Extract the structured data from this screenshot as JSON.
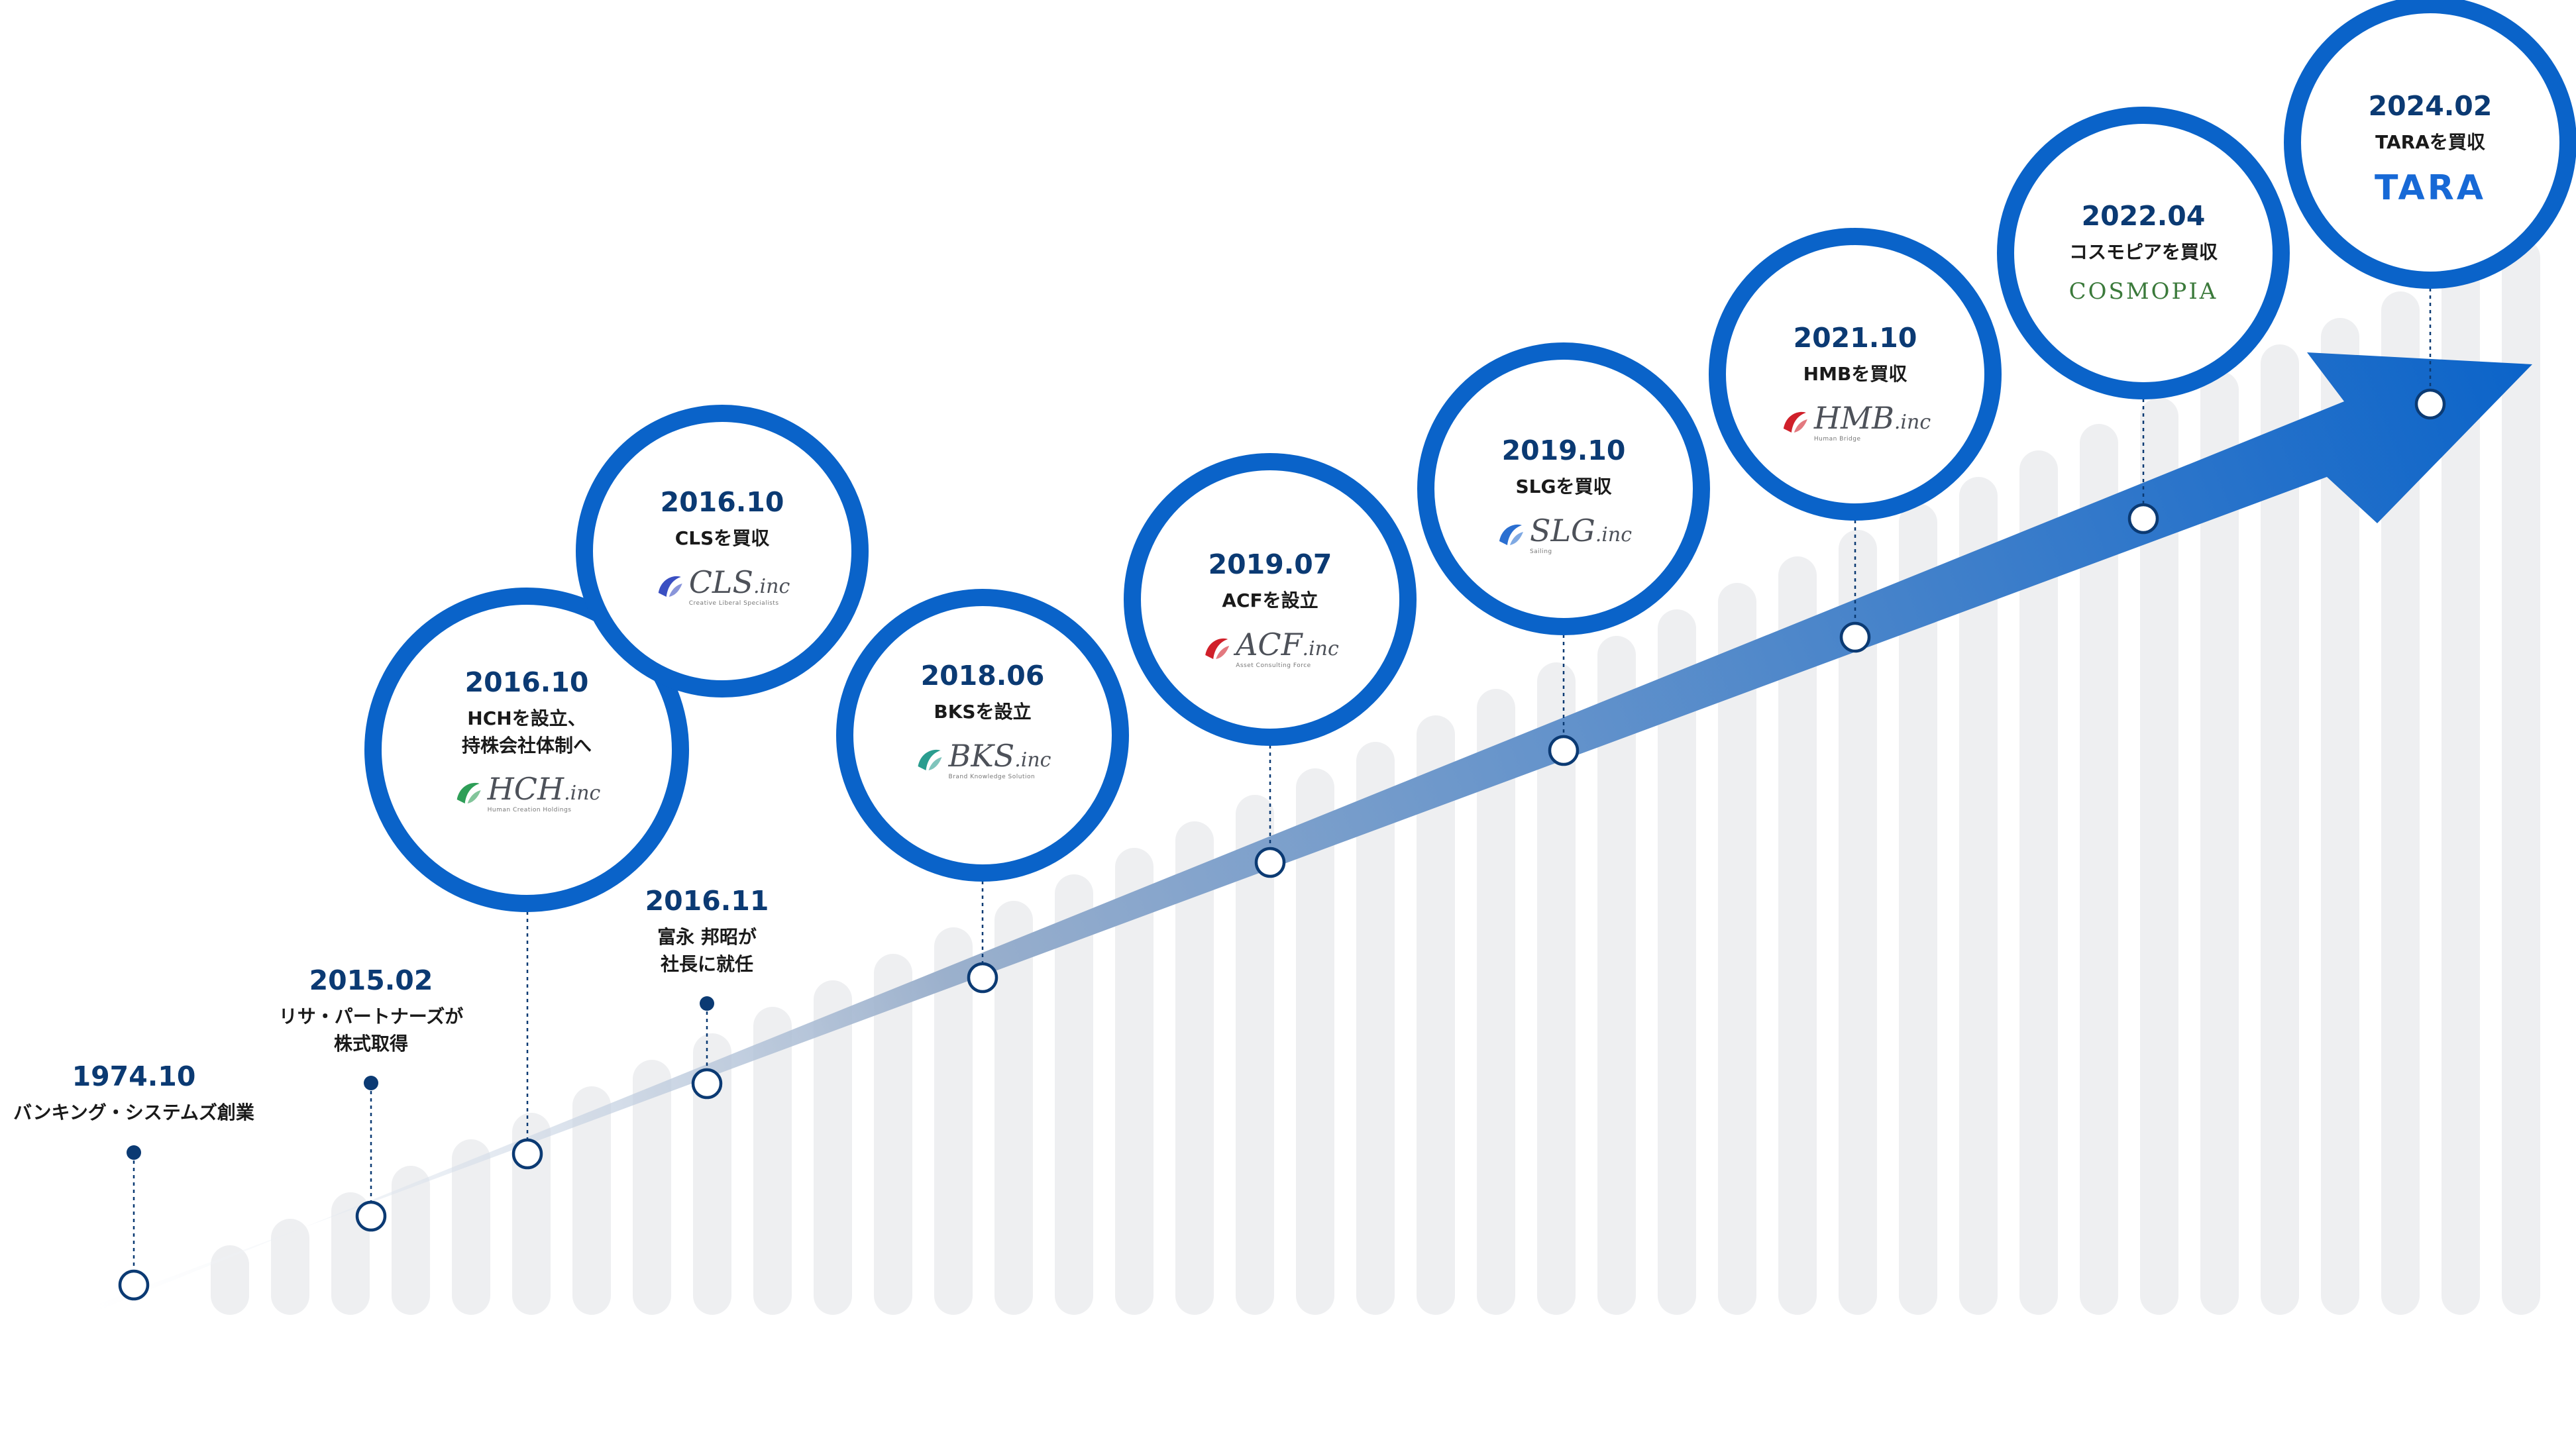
{
  "milestones": [
    {
      "date": "1974.10",
      "desc": [
        "バンキング・システムズ創業"
      ],
      "logo": null
    },
    {
      "date": "2015.02",
      "desc": [
        "リサ・パートナーズが",
        "株式取得"
      ],
      "logo": null
    },
    {
      "date": "2016.10",
      "desc": [
        "HCHを設立、",
        "持株会社体制へ"
      ],
      "logo": {
        "icon": "hch-logo-icon",
        "main": "HCH",
        "suffix": ".inc",
        "sub": "Human Creation Holdings",
        "color": "#2e9e57"
      }
    },
    {
      "date": "2016.11",
      "desc": [
        "富永 邦昭が",
        "社長に就任"
      ],
      "logo": null
    },
    {
      "date": "2016.10",
      "desc": [
        "CLSを買収"
      ],
      "logo": {
        "icon": "cls-logo-icon",
        "main": "CLS",
        "suffix": ".inc",
        "sub": "Creative Liberal Specialists",
        "color": "#3a4fc2"
      }
    },
    {
      "date": "2018.06",
      "desc": [
        "BKSを設立"
      ],
      "logo": {
        "icon": "bks-logo-icon",
        "main": "BKS",
        "suffix": ".inc",
        "sub": "Brand Knowledge Solution",
        "color": "#2a9d8f"
      }
    },
    {
      "date": "2019.07",
      "desc": [
        "ACFを設立"
      ],
      "logo": {
        "icon": "acf-logo-icon",
        "main": "ACF",
        "suffix": ".inc",
        "sub": "Asset Consulting Force",
        "color": "#d0202a"
      }
    },
    {
      "date": "2019.10",
      "desc": [
        "SLGを買収"
      ],
      "logo": {
        "icon": "slg-logo-icon",
        "main": "SLG",
        "suffix": ".inc",
        "sub": "Sailing",
        "color": "#2a6fd1"
      }
    },
    {
      "date": "2021.10",
      "desc": [
        "HMBを買収"
      ],
      "logo": {
        "icon": "hmb-logo-icon",
        "main": "HMB",
        "suffix": ".inc",
        "sub": "Human Bridge",
        "color": "#d0202a"
      }
    },
    {
      "date": "2022.04",
      "desc": [
        "コスモピアを買収"
      ],
      "logo": {
        "icon": null,
        "main": "COSMOPIA",
        "suffix": "",
        "sub": "",
        "color": "#3b7a3b"
      }
    },
    {
      "date": "2024.02",
      "desc": [
        "TARAを買収"
      ],
      "logo": {
        "icon": null,
        "main": "TARA",
        "suffix": "",
        "sub": "",
        "color": "#1769d6"
      }
    }
  ],
  "colors": {
    "ring": "#0a63c9",
    "date": "#0b3a73",
    "dot": "#0b3a73",
    "bar": "#eeeff1",
    "arrow_start": "#ffffff",
    "arrow_end": "#0a63c9"
  }
}
